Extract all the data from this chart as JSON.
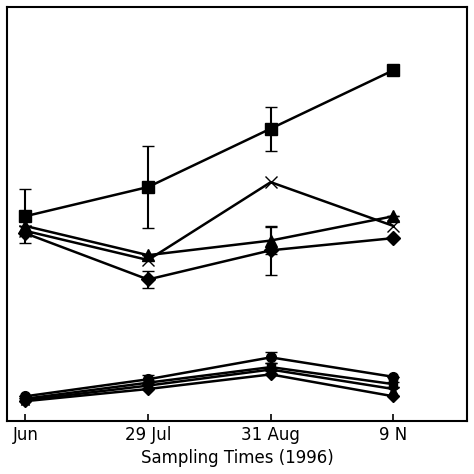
{
  "xlabel": "Sampling Times (1996)",
  "xtick_labels": [
    "Jun",
    "29 Jul",
    "31 Aug",
    "9 N"
  ],
  "x_values": [
    0,
    1,
    2,
    3
  ],
  "background_color": "#ffffff",
  "border_color": "#000000",
  "series": [
    {
      "name": "square_upper",
      "marker": "s",
      "markersize": 8,
      "linewidth": 1.8,
      "color": "#000000",
      "y": [
        5.2,
        5.8,
        7.0,
        8.2
      ],
      "yerr": [
        0.55,
        0.85,
        0.45,
        0.0
      ]
    },
    {
      "name": "triangle_upper",
      "marker": "^",
      "markersize": 8,
      "linewidth": 1.8,
      "color": "#000000",
      "y": [
        5.0,
        4.4,
        4.7,
        5.2
      ],
      "yerr": [
        0.0,
        0.0,
        0.28,
        0.0
      ]
    },
    {
      "name": "x_upper",
      "marker": "x",
      "markersize": 9,
      "linewidth": 1.8,
      "color": "#000000",
      "y": [
        4.9,
        4.3,
        5.9,
        5.0
      ],
      "yerr": [
        0.0,
        0.0,
        0.0,
        0.0
      ]
    },
    {
      "name": "diamond_upper",
      "marker": "D",
      "markersize": 7,
      "linewidth": 1.8,
      "color": "#000000",
      "y": [
        4.85,
        3.9,
        4.5,
        4.75
      ],
      "yerr": [
        0.0,
        0.18,
        0.5,
        0.0
      ]
    },
    {
      "name": "circle_lower",
      "marker": "o",
      "markersize": 7,
      "linewidth": 1.8,
      "color": "#000000",
      "y": [
        1.5,
        1.85,
        2.3,
        1.9
      ],
      "yerr": [
        0.0,
        0.08,
        0.12,
        0.0
      ]
    },
    {
      "name": "square_lower",
      "marker": "s",
      "markersize": 6,
      "linewidth": 1.8,
      "color": "#000000",
      "y": [
        1.45,
        1.78,
        2.1,
        1.75
      ],
      "yerr": [
        0.05,
        0.05,
        0.08,
        0.05
      ]
    },
    {
      "name": "star_lower",
      "marker": "*",
      "markersize": 9,
      "linewidth": 1.8,
      "color": "#000000",
      "y": [
        1.42,
        1.72,
        2.05,
        1.65
      ],
      "yerr": [
        0.0,
        0.0,
        0.0,
        0.0
      ]
    },
    {
      "name": "diamond_lower",
      "marker": "D",
      "markersize": 6,
      "linewidth": 1.8,
      "color": "#000000",
      "y": [
        1.4,
        1.65,
        1.95,
        1.5
      ],
      "yerr": [
        0.0,
        0.0,
        0.0,
        0.0
      ]
    }
  ],
  "ylim": [
    1.0,
    9.5
  ],
  "xlim": [
    -0.15,
    3.6
  ],
  "figsize": [
    4.74,
    4.74
  ],
  "dpi": 100
}
